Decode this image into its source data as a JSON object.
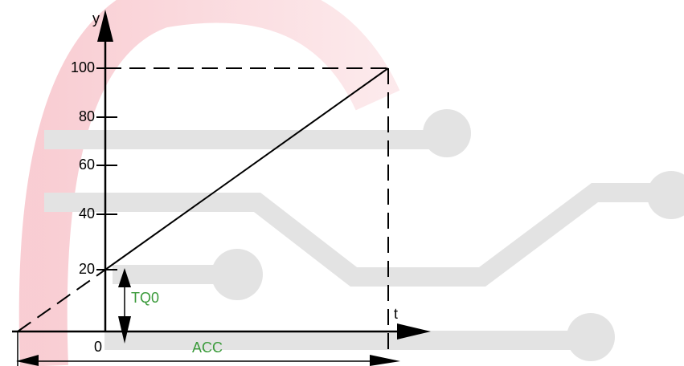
{
  "axes": {
    "y_label": "y",
    "x_label": "t",
    "y_ticks": [
      100,
      80,
      60,
      40,
      20
    ],
    "origin": "0"
  },
  "annotations": {
    "tq0": "TQ0",
    "acc": "ACC"
  }
}
